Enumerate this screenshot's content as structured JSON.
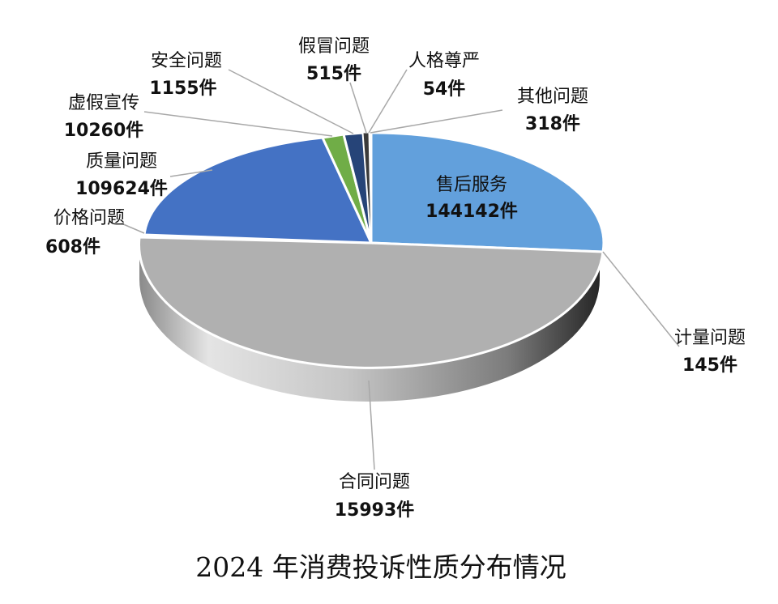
{
  "chart_data": {
    "type": "pie",
    "title": "2024 年消费投诉性质分布情况",
    "categories": [
      "售后服务",
      "计量问题",
      "合同问题",
      "价格问题",
      "质量问题",
      "虚假宣传",
      "安全问题",
      "假冒问题",
      "人格尊严",
      "其他问题"
    ],
    "values": [
      144142,
      145,
      15993,
      608,
      109624,
      10260,
      1155,
      515,
      54,
      318
    ],
    "value_labels": [
      "144142件",
      "145件",
      "15993件",
      "608件",
      "109624件",
      "10260件",
      "1155件",
      "515件",
      "54件",
      "318件"
    ],
    "colors": [
      "#5b9bd5",
      "#9e9e9e",
      "#bdbdbd",
      "#5a7fc4",
      "#4472c4",
      "#70ad47",
      "#264478",
      "#4a4a4a",
      "#7f7f7f",
      "#5b9bd5"
    ],
    "style": "3d"
  }
}
